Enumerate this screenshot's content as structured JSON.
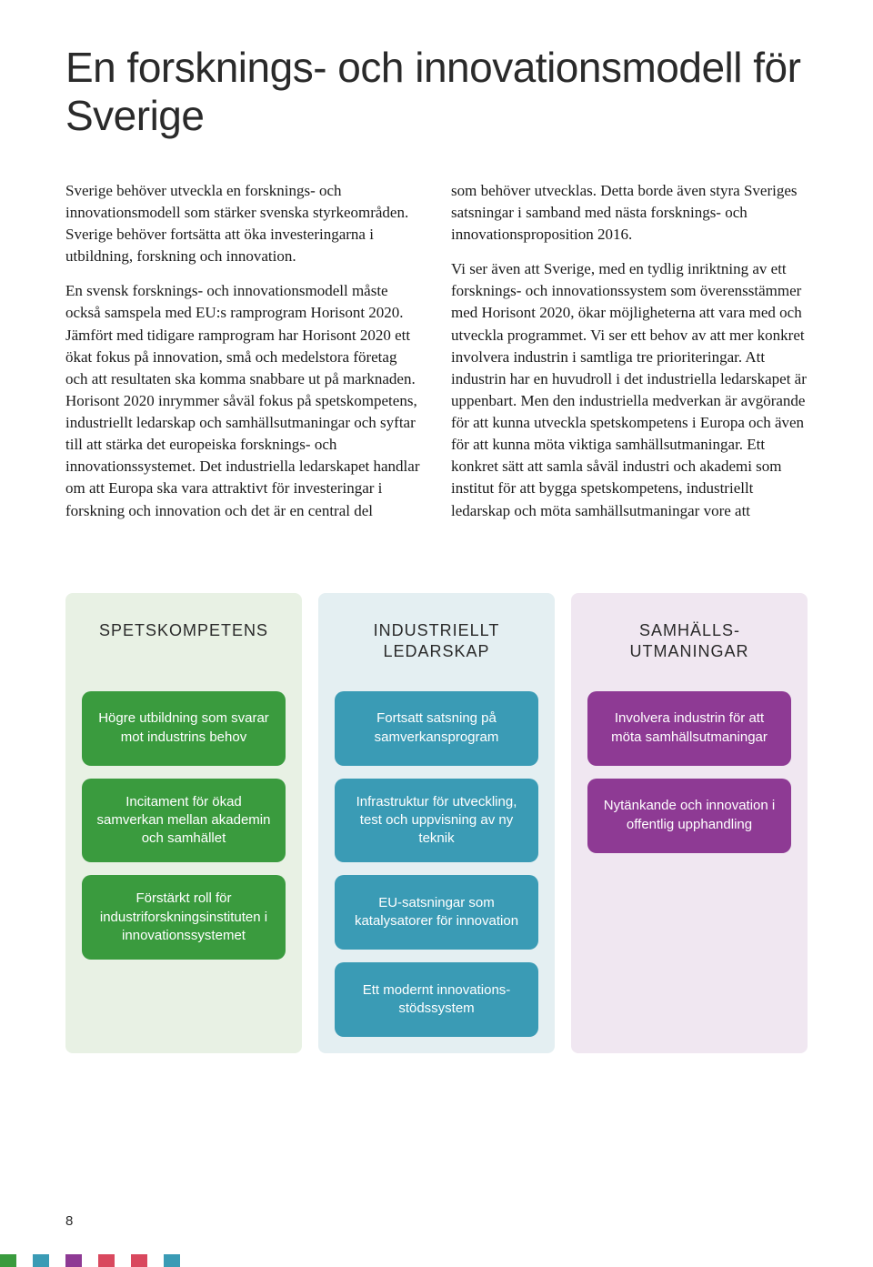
{
  "title": "En forsknings- och innovationsmodell för Sverige",
  "title_fontsize": 46,
  "body_left": [
    "Sverige behöver utveckla en forsknings- och innovationsmodell som stärker svenska styrkeområden. Sverige behöver fortsätta att öka investeringarna i utbildning, forskning och innovation.",
    "En svensk forsknings- och innovationsmodell måste också samspela med EU:s ramprogram Horisont 2020. Jämfört med tidigare ramprogram har Horisont 2020 ett ökat fokus på innovation, små och medelstora företag och att resultaten ska komma snabbare ut på marknaden. Horisont 2020 inrymmer såväl fokus på spetskompetens, industriellt ledarskap och samhällsutmaningar och syftar till att stärka det europeiska forsknings- och innovationssystemet. Det industriella ledarskapet handlar om att Europa ska vara attraktivt för investeringar i forskning och innovation och det är en central del"
  ],
  "body_right": [
    "som behöver utvecklas. Detta borde även styra Sveriges satsningar i samband med nästa forsknings- och innovationsproposition 2016.",
    "Vi ser även att Sverige, med en tydlig inriktning av ett forsknings- och innovationssystem som överensstämmer med Horisont 2020, ökar möjligheterna att vara med och utveckla programmet. Vi ser ett behov av att mer konkret involvera industrin i samtliga tre prioriteringar. Att industrin har en huvudroll i det industriella ledarskapet är uppenbart. Men den industriella medverkan är avgörande för att kunna utveckla spetskompetens i Europa och även för att kunna möta viktiga samhällsutmaningar. Ett konkret sätt att samla såväl industri och akademi som institut för att bygga spetskompetens, industriellt ledarskap och möta samhällsutmaningar vore att"
  ],
  "cards": [
    {
      "title": "SPETSKOMPETENS",
      "bg": "#e8f1e4",
      "pill_color": "#3a9b3e",
      "pills": [
        "Högre utbildning som svarar mot industrins behov",
        "Incitament för ökad samverkan mellan akademin och samhället",
        "Förstärkt roll för industriforskningsinstituten i innovationssystemet"
      ]
    },
    {
      "title": "INDUSTRIELLT LEDARSKAP",
      "bg": "#e4eff2",
      "pill_color": "#3a9bb5",
      "pills": [
        "Fortsatt satsning på samverkansprogram",
        "Infrastruktur för utveckling, test och uppvisning av ny teknik",
        "EU-satsningar som katalysatorer för innovation",
        "Ett modernt innovations­stödssystem"
      ]
    },
    {
      "title": "SAMHÄLLS­UTMANINGAR",
      "bg": "#f0e7f1",
      "pill_color": "#8e3a94",
      "pills": [
        "Involvera industrin för att möta samhällsutmaningar",
        "Nytänkande och innovation i offentlig upphandling"
      ]
    }
  ],
  "page_number": "8",
  "strip_colors": [
    "#3a9b3e",
    "#ffffff",
    "#3a9bb5",
    "#ffffff",
    "#8e3a94",
    "#ffffff",
    "#d9485e",
    "#ffffff",
    "#d9485e",
    "#ffffff",
    "#3a9bb5"
  ]
}
